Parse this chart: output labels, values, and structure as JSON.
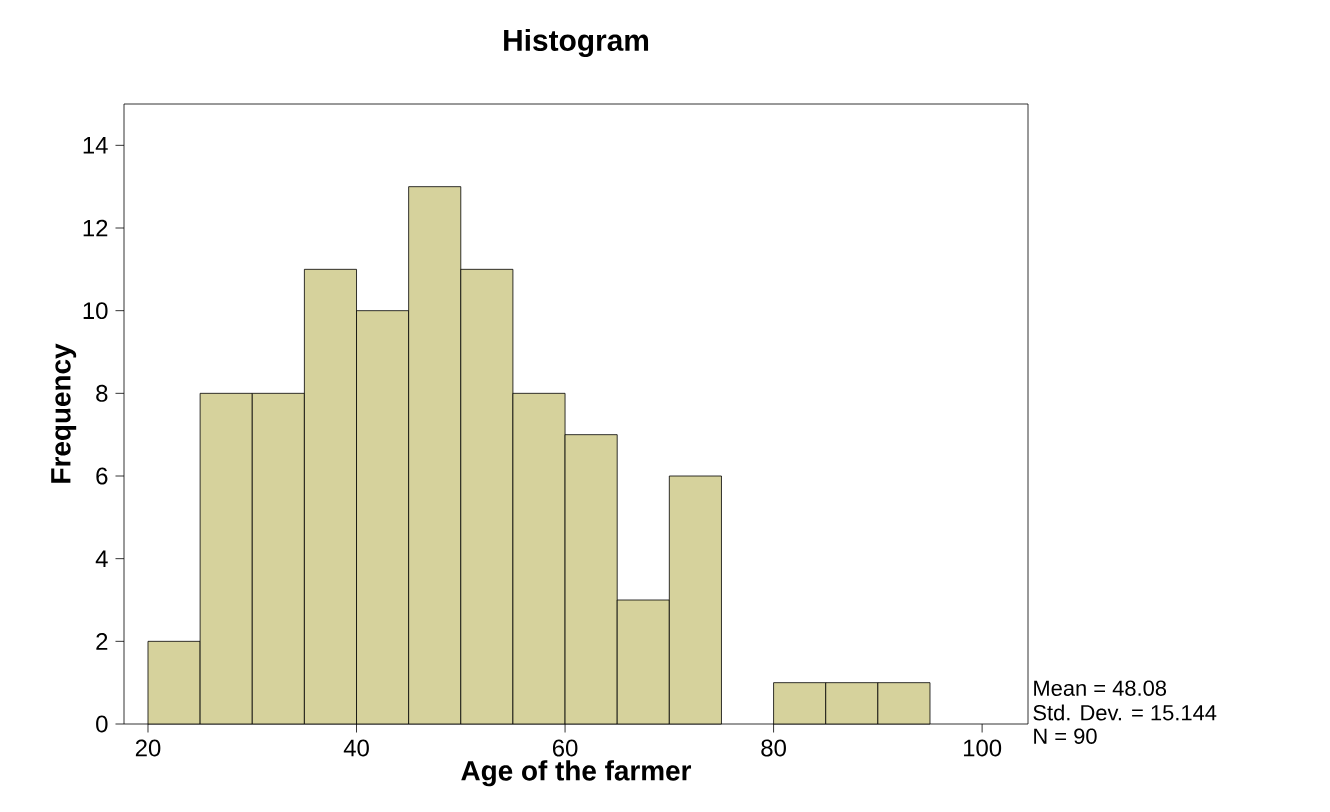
{
  "chart_data": {
    "type": "histogram",
    "title": "Histogram",
    "xlabel": "Age of the farmer",
    "ylabel": "Frequency",
    "bins": [
      20,
      25,
      30,
      35,
      40,
      45,
      50,
      55,
      60,
      65,
      70,
      75,
      80,
      85,
      90,
      95
    ],
    "values": [
      2,
      8,
      8,
      11,
      10,
      13,
      11,
      8,
      7,
      3,
      6,
      0,
      1,
      1,
      1
    ],
    "color": "#d6d29c",
    "xlim": [
      17.7,
      104.4
    ],
    "ylim": [
      0,
      15
    ],
    "xticks": [
      20,
      40,
      60,
      80,
      100
    ],
    "yticks": [
      0,
      2,
      4,
      6,
      8,
      10,
      12,
      14
    ],
    "annotations": [
      "Mean = 48.08",
      "Std. Dev. = 15.144",
      "N = 90"
    ]
  }
}
